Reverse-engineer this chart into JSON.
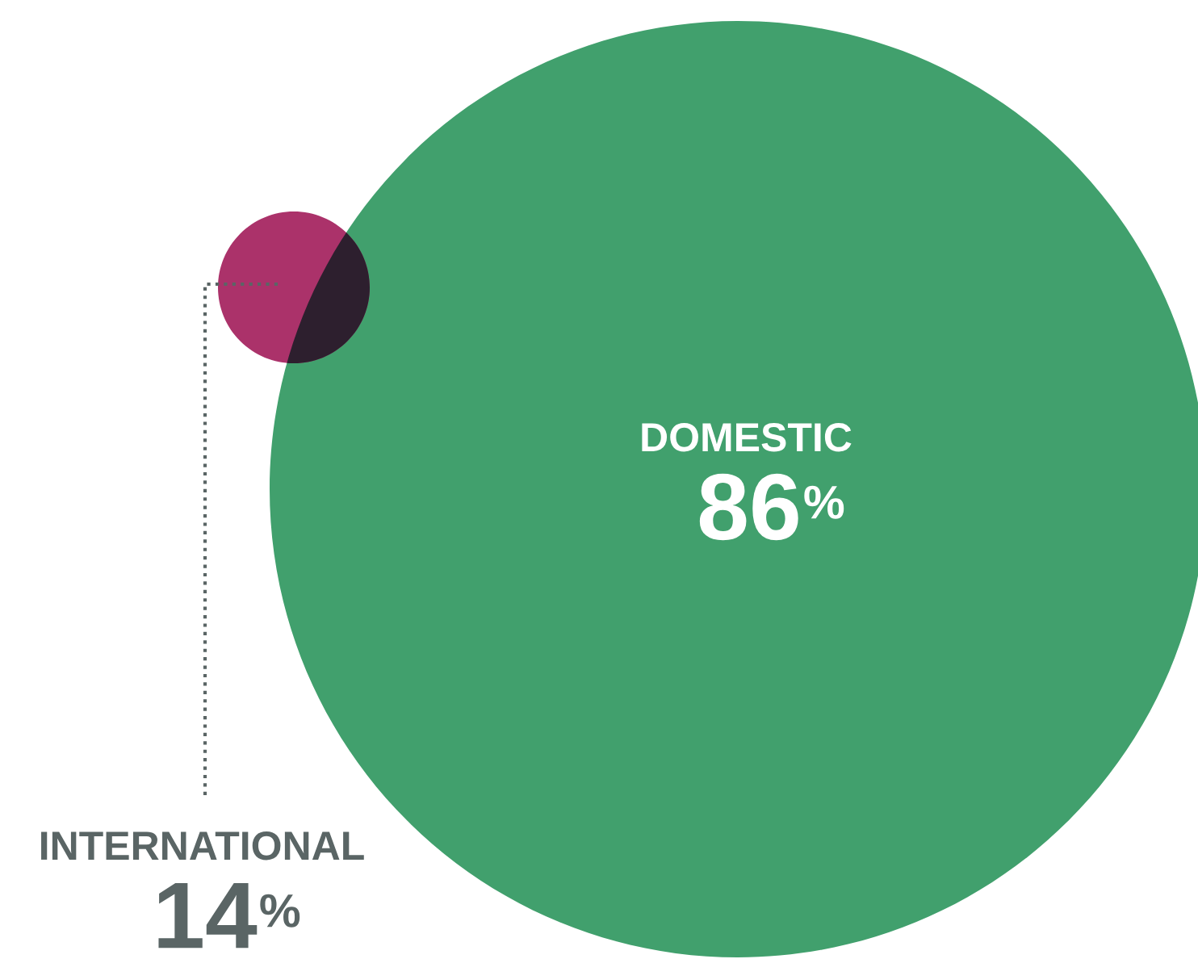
{
  "chart_data": {
    "type": "other",
    "categories": [
      "DOMESTIC",
      "INTERNATIONAL"
    ],
    "values": [
      86,
      14
    ],
    "value_labels": [
      "86%",
      "14%"
    ],
    "colors": [
      "#41a06d",
      "#ab326a"
    ]
  }
}
